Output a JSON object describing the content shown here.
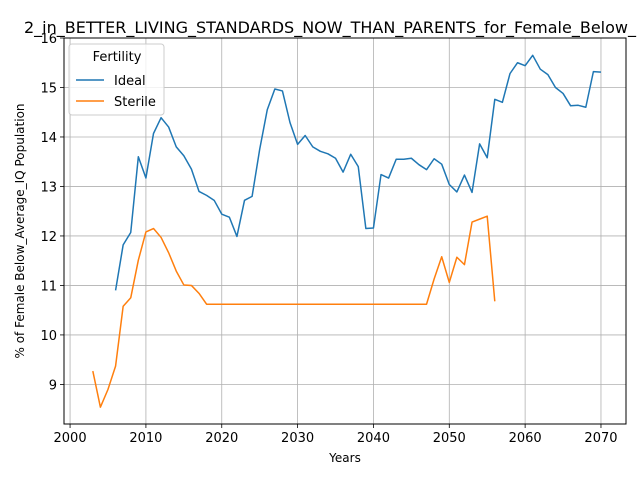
{
  "chart_data": {
    "type": "line",
    "title": "2_in_BETTER_LIVING_STANDARDS_NOW_THAN_PARENTS_for_Female_Below_",
    "xlabel": "Years",
    "ylabel": "% of Female Below_Average_IQ Population",
    "xlim": [
      1999.2,
      2073.3
    ],
    "ylim": [
      8.2,
      16.0
    ],
    "xticks": [
      2000,
      2010,
      2020,
      2030,
      2040,
      2050,
      2060,
      2070
    ],
    "yticks": [
      9,
      10,
      11,
      12,
      13,
      14,
      15,
      16
    ],
    "grid": true,
    "legend": {
      "title": "Fertility",
      "placement": "top-left"
    },
    "series": [
      {
        "name": "Ideal",
        "color": "#1f77b4",
        "x": [
          2006,
          2007,
          2008,
          2009,
          2010,
          2011,
          2012,
          2013,
          2014,
          2015,
          2016,
          2017,
          2018,
          2019,
          2020,
          2021,
          2022,
          2023,
          2024,
          2025,
          2026,
          2027,
          2028,
          2029,
          2030,
          2031,
          2032,
          2033,
          2034,
          2035,
          2036,
          2037,
          2038,
          2039,
          2040,
          2041,
          2042,
          2043,
          2044,
          2045,
          2046,
          2047,
          2048,
          2049,
          2050,
          2051,
          2052,
          2053,
          2054,
          2055,
          2056,
          2057,
          2058,
          2059,
          2060,
          2061,
          2062,
          2063,
          2064,
          2065,
          2066,
          2067,
          2068,
          2069,
          2070
        ],
        "values": [
          10.9,
          11.82,
          12.07,
          13.6,
          13.17,
          14.07,
          14.39,
          14.2,
          13.8,
          13.62,
          13.35,
          12.9,
          12.82,
          12.72,
          12.44,
          12.38,
          11.99,
          12.72,
          12.8,
          13.75,
          14.55,
          14.97,
          14.93,
          14.29,
          13.85,
          14.03,
          13.8,
          13.71,
          13.66,
          13.57,
          13.29,
          13.65,
          13.4,
          12.15,
          12.16,
          13.24,
          13.17,
          13.55,
          13.55,
          13.57,
          13.44,
          13.34,
          13.56,
          13.45,
          13.04,
          12.89,
          13.23,
          12.88,
          13.86,
          13.58,
          14.76,
          14.7,
          15.28,
          15.5,
          15.44,
          15.65,
          15.37,
          15.26,
          15.0,
          14.88,
          14.63,
          14.64,
          14.6,
          15.32,
          15.31
        ]
      },
      {
        "name": "Sterile",
        "color": "#ff7f0e",
        "x": [
          2003,
          2004,
          2005,
          2006,
          2007,
          2008,
          2009,
          2010,
          2011,
          2012,
          2013,
          2014,
          2015,
          2016,
          2017,
          2018,
          2019,
          2020,
          2021,
          2022,
          2023,
          2024,
          2025,
          2026,
          2027,
          2028,
          2029,
          2030,
          2031,
          2032,
          2033,
          2034,
          2035,
          2036,
          2037,
          2038,
          2039,
          2040,
          2041,
          2042,
          2043,
          2044,
          2045,
          2046,
          2047,
          2048,
          2049,
          2050,
          2051,
          2052,
          2053,
          2054,
          2055,
          2056
        ],
        "values": [
          9.27,
          8.54,
          8.9,
          9.37,
          10.58,
          10.75,
          11.51,
          12.08,
          12.15,
          11.97,
          11.66,
          11.29,
          11.01,
          11.0,
          10.84,
          10.62,
          10.62,
          10.62,
          10.62,
          10.62,
          10.62,
          10.62,
          10.62,
          10.62,
          10.62,
          10.62,
          10.62,
          10.62,
          10.62,
          10.62,
          10.62,
          10.62,
          10.62,
          10.62,
          10.62,
          10.62,
          10.62,
          10.62,
          10.62,
          10.62,
          10.62,
          10.62,
          10.62,
          10.62,
          10.62,
          11.13,
          11.58,
          11.06,
          11.57,
          11.42,
          12.28,
          12.34,
          12.4,
          10.68
        ]
      }
    ]
  }
}
